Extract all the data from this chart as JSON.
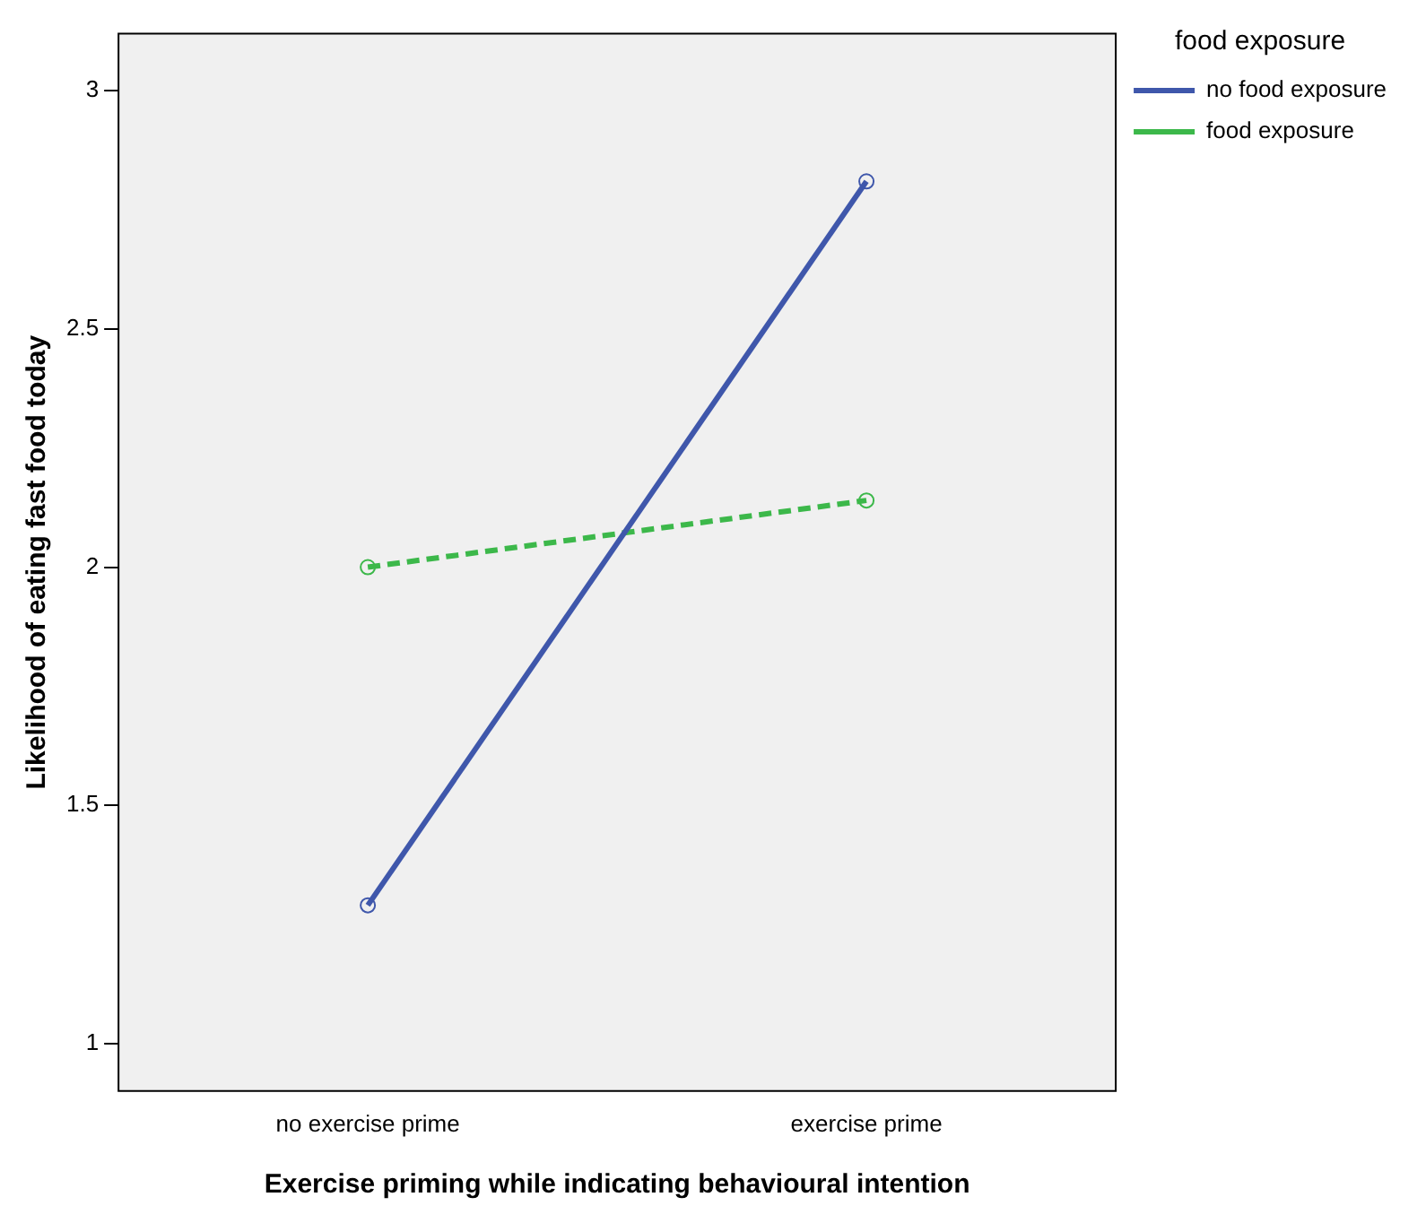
{
  "chart_data": {
    "type": "line",
    "xlabel": "Exercise priming while indicating behavioural intention",
    "ylabel": "Likelihood of eating fast food today",
    "legend_title": "food exposure",
    "legend": "right",
    "marker": "circle",
    "grid": false,
    "categories": [
      "no exercise prime",
      "exercise prime"
    ],
    "series": [
      {
        "name": "no food exposure",
        "color": "#3f57ab",
        "values": [
          1.29,
          2.81
        ],
        "line_style": "solid"
      },
      {
        "name": "food exposure",
        "color": "#3cb84a",
        "values": [
          2.0,
          2.14
        ],
        "line_style": "dashed"
      }
    ],
    "ylim": [
      0.9,
      3.12
    ],
    "yticks": [
      1,
      1.5,
      2,
      2.5,
      3
    ]
  }
}
